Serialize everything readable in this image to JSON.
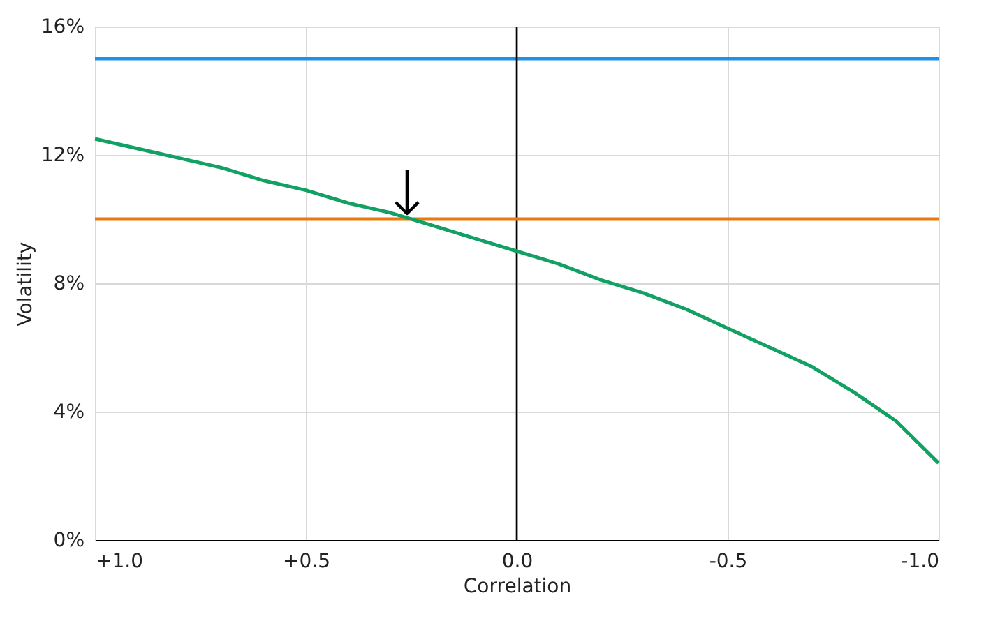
{
  "chart_data": {
    "type": "line",
    "xlabel": "Correlation",
    "ylabel": "Volatility",
    "xlim": [
      1.0,
      -1.0
    ],
    "xticks": [
      {
        "value": 1.0,
        "label": "+1.0"
      },
      {
        "value": 0.5,
        "label": "+0.5"
      },
      {
        "value": 0.0,
        "label": "0.0"
      },
      {
        "value": -0.5,
        "label": "-0.5"
      },
      {
        "value": -1.0,
        "label": "-1.0"
      }
    ],
    "ylim": [
      0,
      16
    ],
    "yticks": [
      {
        "value": 0,
        "label": "0%"
      },
      {
        "value": 4,
        "label": "4%"
      },
      {
        "value": 8,
        "label": "8%"
      },
      {
        "value": 12,
        "label": "12%"
      },
      {
        "value": 16,
        "label": "16%"
      }
    ],
    "grid": true,
    "marker": "none",
    "line_style": "solid",
    "series": [
      {
        "color": "#1e90e6",
        "x": [
          1.0,
          -1.0
        ],
        "values": [
          15,
          15
        ]
      },
      {
        "color": "#e87a10",
        "x": [
          1.0,
          -1.0
        ],
        "values": [
          10,
          10
        ]
      },
      {
        "color": "#12a064",
        "x": [
          1.0,
          0.9,
          0.8,
          0.7,
          0.6,
          0.5,
          0.4,
          0.3,
          0.2,
          0.1,
          0.0,
          -0.1,
          -0.2,
          -0.3,
          -0.4,
          -0.5,
          -0.6,
          -0.7,
          -0.8,
          -0.9,
          -1.0
        ],
        "values": [
          12.5,
          12.2,
          11.9,
          11.6,
          11.2,
          10.9,
          10.5,
          10.2,
          9.8,
          9.4,
          9.0,
          8.6,
          8.1,
          7.7,
          7.2,
          6.6,
          6.0,
          5.4,
          4.6,
          3.7,
          2.4
        ]
      }
    ],
    "ref_lines": [
      {
        "axis": "x",
        "value": 0.0,
        "color": "#000000",
        "line_style": "solid"
      }
    ],
    "annotations": [
      {
        "text": "↓",
        "x": 0.26,
        "y": 10
      }
    ]
  }
}
